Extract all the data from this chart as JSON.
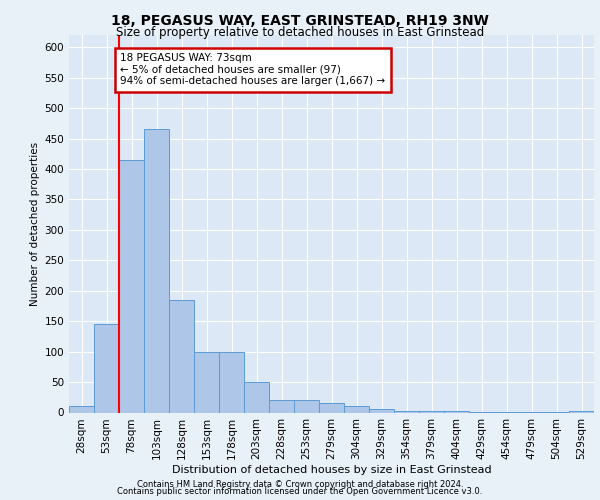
{
  "title": "18, PEGASUS WAY, EAST GRINSTEAD, RH19 3NW",
  "subtitle": "Size of property relative to detached houses in East Grinstead",
  "xlabel": "Distribution of detached houses by size in East Grinstead",
  "ylabel": "Number of detached properties",
  "bin_labels": [
    "28sqm",
    "53sqm",
    "78sqm",
    "103sqm",
    "128sqm",
    "153sqm",
    "178sqm",
    "203sqm",
    "228sqm",
    "253sqm",
    "279sqm",
    "304sqm",
    "329sqm",
    "354sqm",
    "379sqm",
    "404sqm",
    "429sqm",
    "454sqm",
    "479sqm",
    "504sqm",
    "529sqm"
  ],
  "bar_heights": [
    10,
    145,
    415,
    465,
    185,
    100,
    100,
    50,
    20,
    20,
    15,
    10,
    5,
    3,
    2,
    2,
    1,
    1,
    1,
    1,
    2
  ],
  "bar_color": "#aec6e8",
  "bar_edge_color": "#5b9bd5",
  "red_line_x": 1.5,
  "annotation_text": "18 PEGASUS WAY: 73sqm\n← 5% of detached houses are smaller (97)\n94% of semi-detached houses are larger (1,667) →",
  "annotation_box_color": "#ffffff",
  "annotation_box_edge_color": "#cc0000",
  "footer_line1": "Contains HM Land Registry data © Crown copyright and database right 2024.",
  "footer_line2": "Contains public sector information licensed under the Open Government Licence v3.0.",
  "ylim": [
    0,
    620
  ],
  "yticks": [
    0,
    50,
    100,
    150,
    200,
    250,
    300,
    350,
    400,
    450,
    500,
    550,
    600
  ],
  "background_color": "#e8f0f8",
  "plot_background": "#dce8f5",
  "title_fontsize": 10,
  "subtitle_fontsize": 8.5,
  "ylabel_fontsize": 7.5,
  "xlabel_fontsize": 8,
  "tick_fontsize": 7.5,
  "annotation_fontsize": 7.5,
  "footer_fontsize": 6
}
